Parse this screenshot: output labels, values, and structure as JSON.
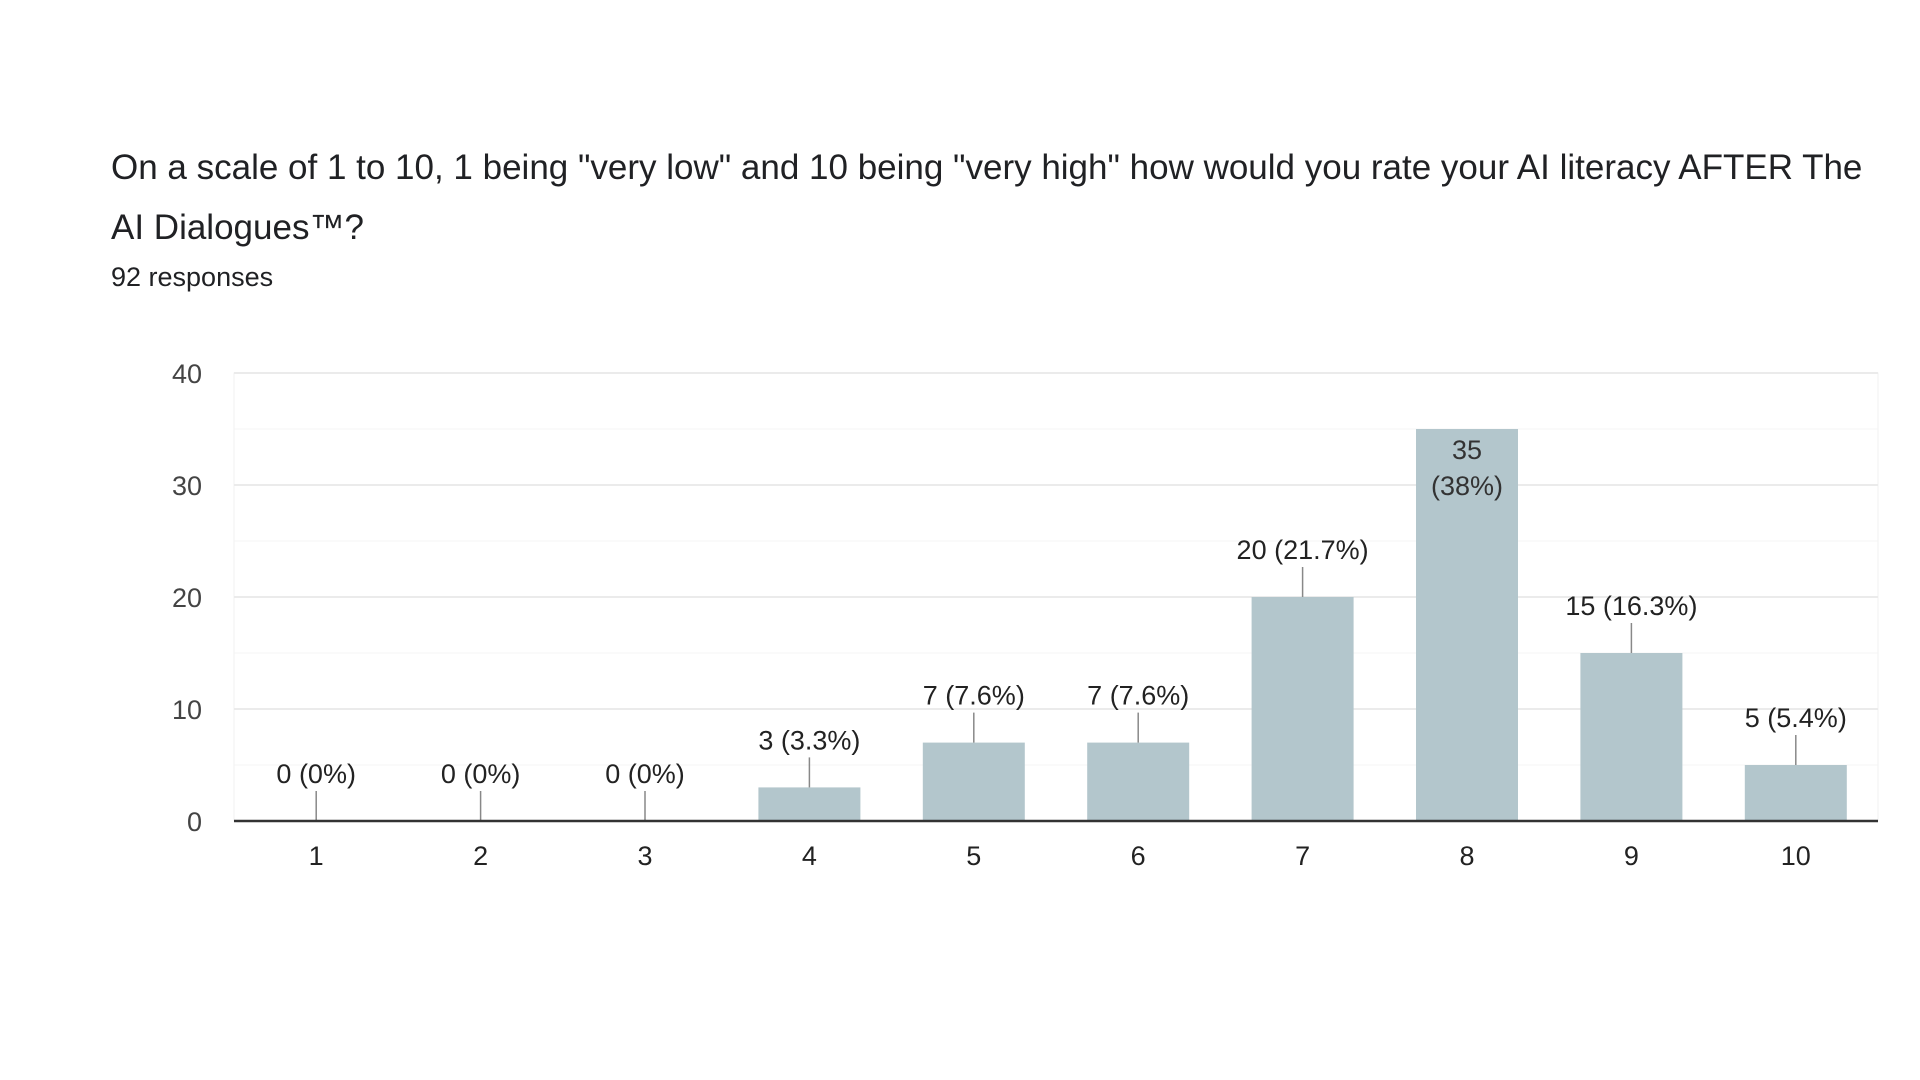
{
  "question": "On a scale of 1 to 10, 1 being \"very low\" and 10 being \"very high\" how would you rate your AI literacy AFTER The AI Dialogues™?",
  "responses": "92 responses",
  "chart_data": {
    "type": "bar",
    "categories": [
      "1",
      "2",
      "3",
      "4",
      "5",
      "6",
      "7",
      "8",
      "9",
      "10"
    ],
    "values": [
      0,
      0,
      0,
      3,
      7,
      7,
      20,
      35,
      15,
      5
    ],
    "labels": [
      "0 (0%)",
      "0 (0%)",
      "0 (0%)",
      "3 (3.3%)",
      "7 (7.6%)",
      "7 (7.6%)",
      "20 (21.7%)",
      "35 (38%)",
      "15 (16.3%)",
      "5 (5.4%)"
    ],
    "ylim": [
      0,
      40
    ],
    "yticks": [
      0,
      10,
      20,
      30,
      40
    ],
    "grid": true,
    "bar_color": "#b3c6cc"
  }
}
